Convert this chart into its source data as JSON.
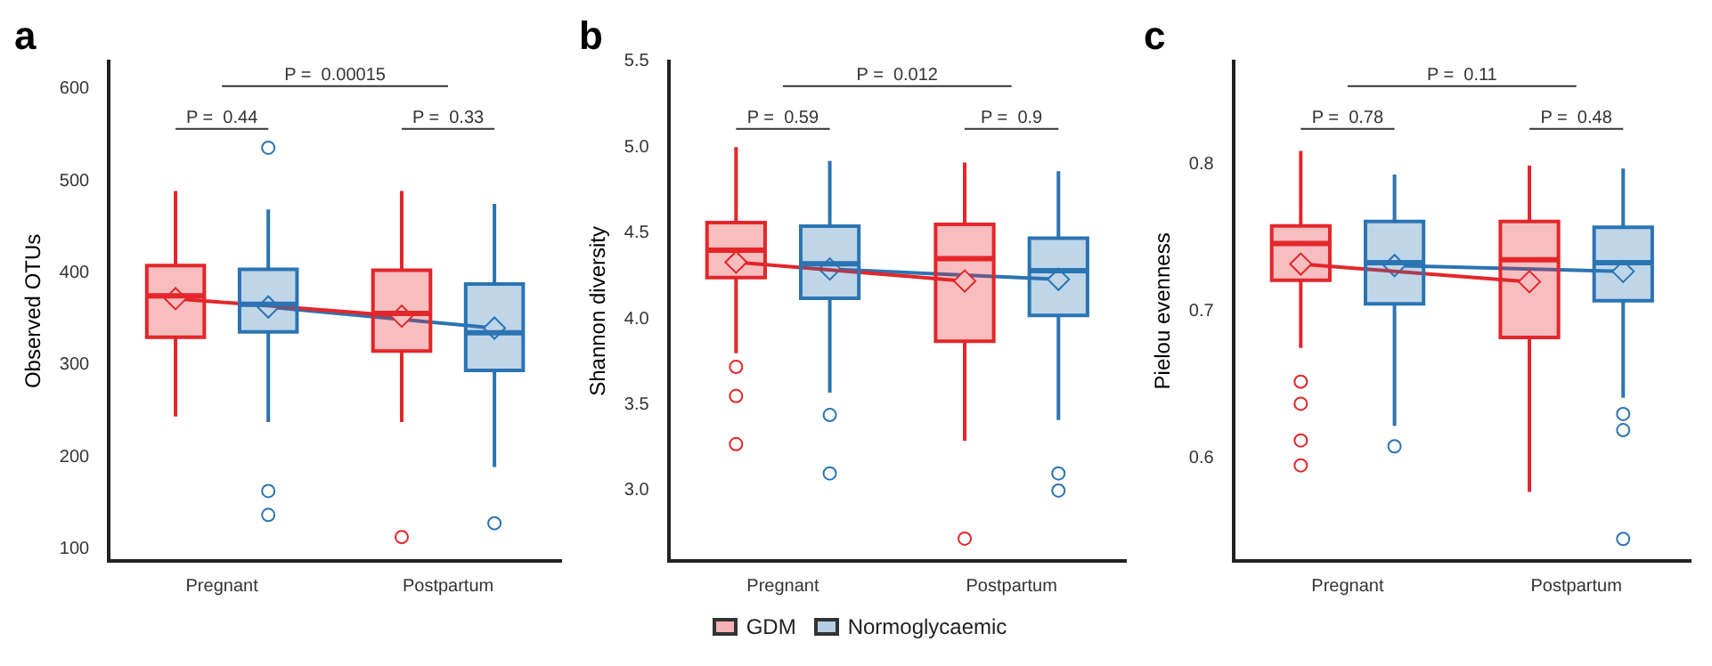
{
  "chart_data": [
    {
      "type": "box",
      "title": "a",
      "ylabel": "Observed OTUs",
      "categories": [
        "Pregnant",
        "Postpartum"
      ],
      "ylim": [
        87,
        630
      ],
      "yticks": [
        100,
        200,
        300,
        400,
        500,
        600
      ],
      "grid": false,
      "legend": false,
      "annotations": [
        "P =  0.44",
        "P =  0.33",
        "P =  0.00015"
      ],
      "series": [
        {
          "color": "#e3262a",
          "boxes": [
            {
              "low": 244,
              "q1": 330,
              "median": 375,
              "q3": 408,
              "high": 489
            },
            {
              "low": 238,
              "q1": 315,
              "median": 356,
              "q3": 403,
              "high": 489,
              "outliers": [
                113
              ]
            }
          ]
        },
        {
          "color": "#2b74b3",
          "boxes": [
            {
              "low": 238,
              "q1": 336,
              "median": 366,
              "q3": 404,
              "high": 469,
              "outliers": [
                536,
                163,
                137
              ]
            },
            {
              "low": 189,
              "q1": 294,
              "median": 335,
              "q3": 388,
              "high": 475,
              "outliers": [
                128
              ]
            }
          ]
        },
        {
          "type": "line",
          "marker": "diamond",
          "color": "#e3262a",
          "values": [
            372,
            353
          ]
        },
        {
          "type": "line",
          "marker": "diamond",
          "color": "#2b74b3",
          "values": [
            363,
            340
          ]
        }
      ]
    },
    {
      "type": "box",
      "title": "b",
      "ylabel": "Shannon diversity",
      "categories": [
        "Pregnant",
        "Postpartum"
      ],
      "ylim": [
        2.59,
        5.5
      ],
      "yticks": [
        {
          "value": 3,
          "label": "3.0"
        },
        3.5,
        {
          "value": 4,
          "label": "4.0"
        },
        4.5,
        {
          "value": 5,
          "label": "5.0"
        },
        5.5
      ],
      "grid": false,
      "legend": "bottom",
      "annotations": [
        "P =  0.59",
        "P =  0.9",
        "P =  0.012"
      ],
      "series": [
        {
          "name": "GDM",
          "color": "#e3262a",
          "boxes": [
            {
              "low": 3.8,
              "q1": 4.24,
              "median": 4.4,
              "q3": 4.56,
              "high": 5.0,
              "outliers": [
                3.72,
                3.55,
                3.27
              ]
            },
            {
              "low": 3.29,
              "q1": 3.87,
              "median": 4.35,
              "q3": 4.55,
              "high": 4.91,
              "outliers": [
                2.72
              ]
            }
          ]
        },
        {
          "name": "Normoglycaemic",
          "color": "#2b74b3",
          "boxes": [
            {
              "low": 3.57,
              "q1": 4.12,
              "median": 4.32,
              "q3": 4.54,
              "high": 4.92,
              "outliers": [
                3.44,
                3.1
              ]
            },
            {
              "low": 3.41,
              "q1": 4.02,
              "median": 4.28,
              "q3": 4.47,
              "high": 4.86,
              "outliers": [
                3.1,
                3.0
              ]
            }
          ]
        },
        {
          "type": "line",
          "marker": "diamond",
          "color": "#e3262a",
          "values": [
            4.33,
            4.22
          ]
        },
        {
          "type": "line",
          "marker": "diamond",
          "color": "#2b74b3",
          "values": [
            4.29,
            4.23
          ]
        }
      ]
    },
    {
      "type": "box",
      "title": "c",
      "ylabel": "Pielou evenness",
      "categories": [
        "Pregnant",
        "Postpartum"
      ],
      "ylim": [
        0.53,
        0.87
      ],
      "yticks": [
        0.6,
        0.7,
        0.8
      ],
      "grid": false,
      "legend": false,
      "annotations": [
        "P =  0.78",
        "P =  0.48",
        "P =  0.11"
      ],
      "series": [
        {
          "color": "#e3262a",
          "boxes": [
            {
              "low": 0.675,
              "q1": 0.721,
              "median": 0.746,
              "q3": 0.758,
              "high": 0.809,
              "outliers": [
                0.652,
                0.637,
                0.612,
                0.595
              ]
            },
            {
              "low": 0.577,
              "q1": 0.682,
              "median": 0.735,
              "q3": 0.761,
              "high": 0.799
            }
          ]
        },
        {
          "color": "#2b74b3",
          "boxes": [
            {
              "low": 0.622,
              "q1": 0.705,
              "median": 0.733,
              "q3": 0.761,
              "high": 0.793,
              "outliers": [
                0.608
              ]
            },
            {
              "low": 0.641,
              "q1": 0.707,
              "median": 0.733,
              "q3": 0.757,
              "high": 0.797,
              "outliers": [
                0.63,
                0.619,
                0.545
              ]
            }
          ]
        },
        {
          "type": "line",
          "marker": "diamond",
          "color": "#e3262a",
          "values": [
            0.732,
            0.72
          ]
        },
        {
          "type": "line",
          "marker": "diamond",
          "color": "#2b74b3",
          "values": [
            0.731,
            0.727
          ]
        }
      ]
    }
  ]
}
